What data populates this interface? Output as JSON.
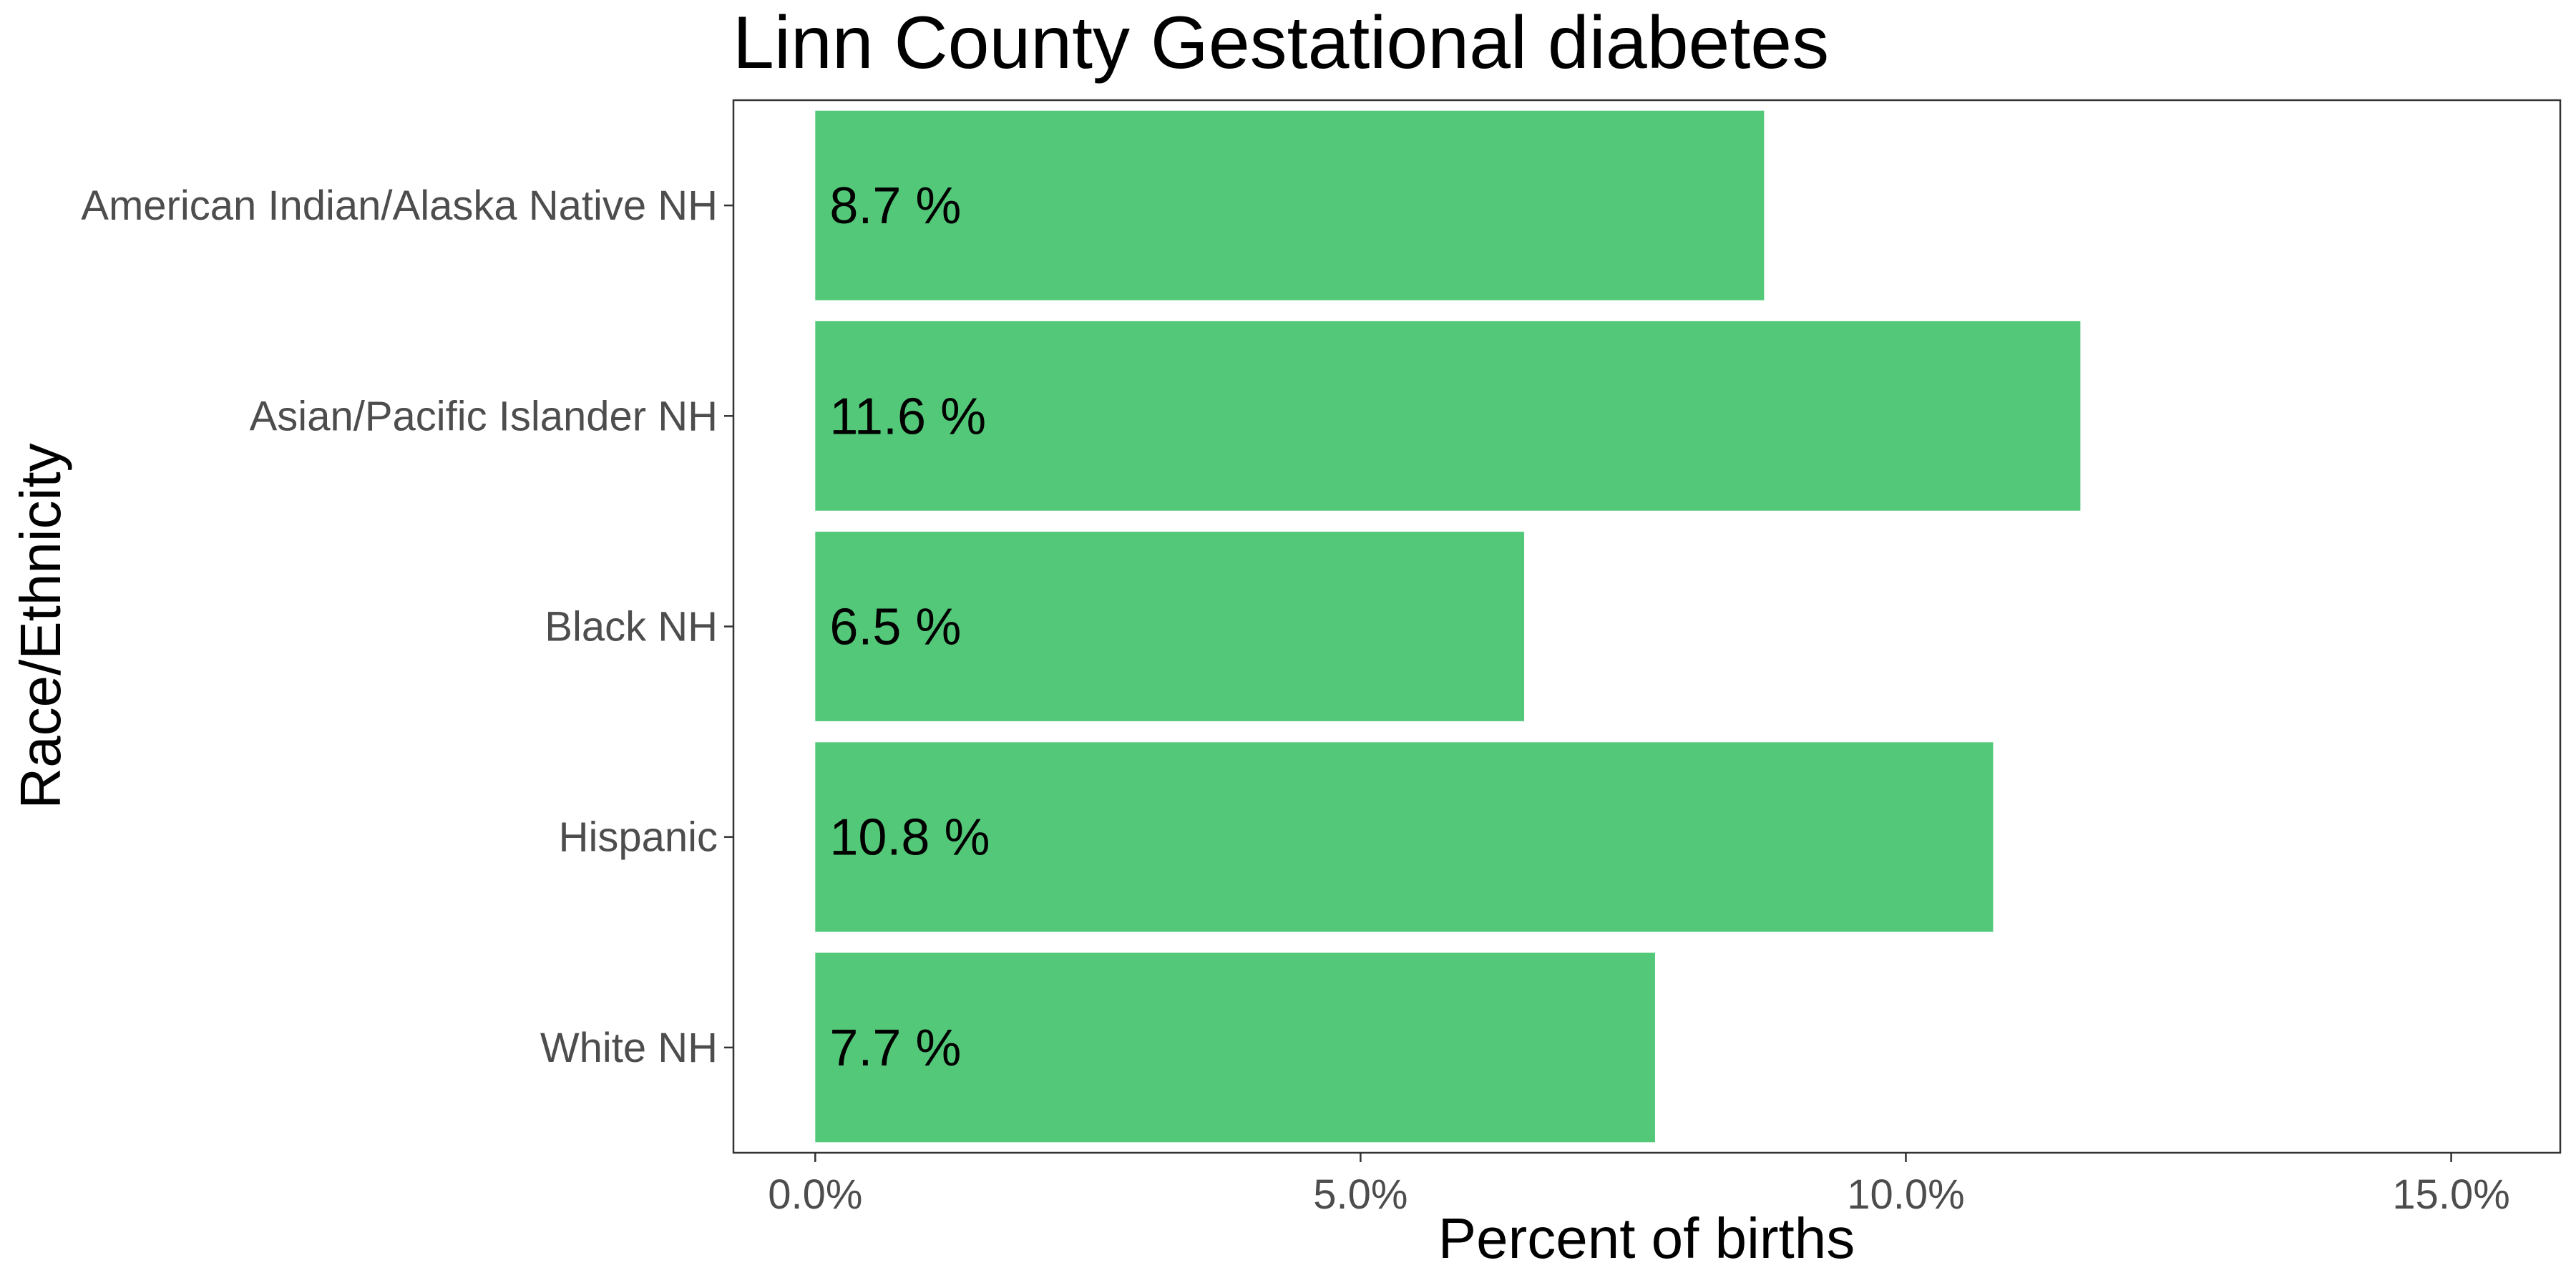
{
  "chart_data": {
    "type": "bar",
    "orientation": "horizontal",
    "title": "Linn County Gestational diabetes",
    "xlabel": "Percent of births",
    "ylabel": "Race/Ethnicity",
    "categories": [
      "American Indian/Alaska Native NH",
      "Asian/Pacific Islander NH",
      "Black NH",
      "Hispanic",
      "White NH"
    ],
    "values": [
      8.7,
      11.6,
      6.5,
      10.8,
      7.7
    ],
    "value_labels": [
      "8.7 %",
      "11.6 %",
      "6.5 %",
      "10.8 %",
      "7.7 %"
    ],
    "xlim": [
      -0.75,
      16.0
    ],
    "xticks": [
      0,
      5,
      10,
      15
    ],
    "xtick_labels": [
      "0.0%",
      "5.0%",
      "10.0%",
      "15.0%"
    ],
    "grid": false,
    "legend": "none",
    "bar_color": "#52c878",
    "panel_border_color": "#333333"
  }
}
